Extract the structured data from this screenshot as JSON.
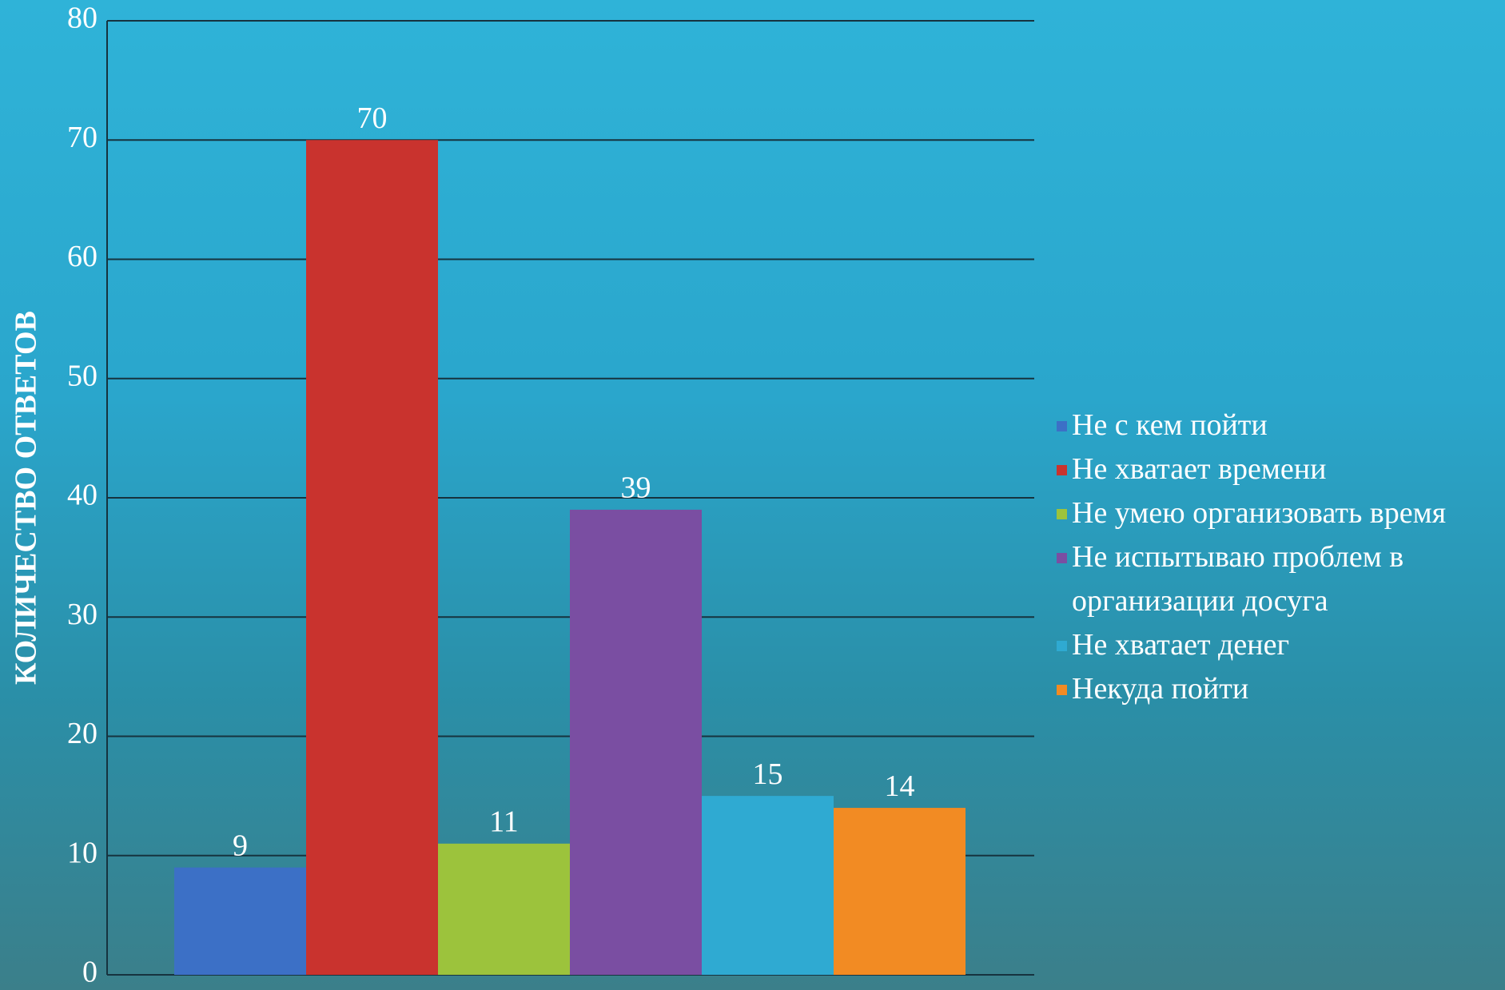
{
  "chart_data": {
    "type": "bar",
    "y_label": "КОЛИЧЕСТВО ОТВЕТОВ",
    "series": [
      {
        "name": "Не с кем пойти",
        "color": "#3c70c6",
        "values": [
          9
        ]
      },
      {
        "name": "Не хватает времени",
        "color": "#c9332e",
        "values": [
          70
        ]
      },
      {
        "name": "Не умею организовать время",
        "color": "#9cc33c",
        "values": [
          11
        ]
      },
      {
        "name": "Не испытываю проблем в организации досуга",
        "color": "#7a4ea2",
        "values": [
          39
        ]
      },
      {
        "name": "Не хватает денег",
        "color": "#2faad2",
        "values": [
          15
        ]
      },
      {
        "name": "Некуда пойти",
        "color": "#f28b23",
        "values": [
          14
        ]
      }
    ],
    "ylim": [
      0,
      80
    ],
    "yticks": [
      0,
      10,
      20,
      30,
      40,
      50,
      60,
      70,
      80
    ],
    "grid": true,
    "legend": "right"
  }
}
